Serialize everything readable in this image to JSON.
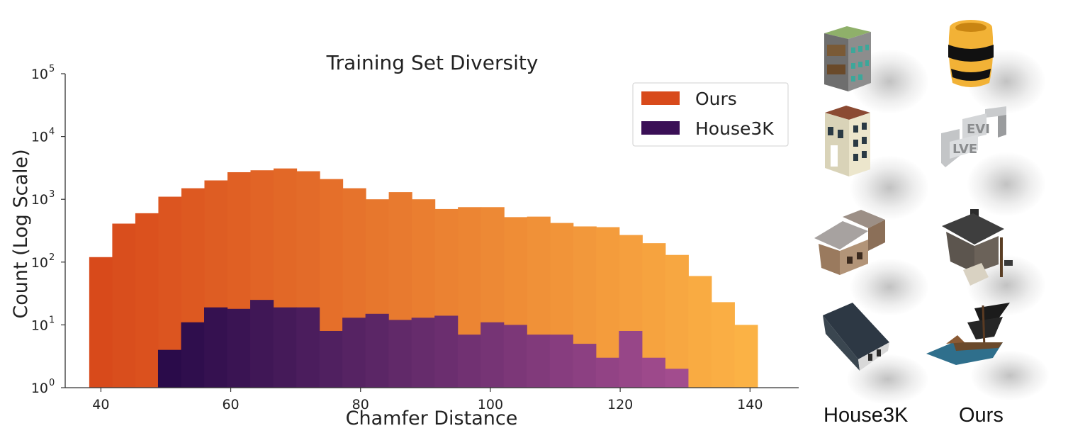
{
  "chart_data": {
    "type": "bar",
    "title": "Training Set Diversity",
    "xlabel": "Chamfer Distance",
    "ylabel": "Count (Log Scale)",
    "xlim": [
      34.5,
      147.5
    ],
    "ylim": [
      1,
      100000
    ],
    "yscale": "log",
    "xticks": [
      "40",
      "60",
      "80",
      "100",
      "120",
      "140"
    ],
    "xtick_values": [
      40,
      60,
      80,
      100,
      120,
      140
    ],
    "yticks": [
      "10",
      "10",
      "10",
      "10",
      "10",
      "10"
    ],
    "ytick_exponents": [
      "0",
      "1",
      "2",
      "3",
      "4",
      "5"
    ],
    "ytick_values": [
      1,
      10,
      100,
      1000,
      10000,
      100000
    ],
    "legend": [
      "Ours",
      "House3K"
    ],
    "legend_position": "top-right",
    "series": [
      {
        "name": "Ours",
        "color_start": "#d84a1b",
        "color_end": "#fbb245",
        "bin_start": 38.2,
        "bin_width": 3.55,
        "values": [
          120,
          410,
          600,
          1100,
          1500,
          2000,
          2700,
          2900,
          3100,
          2800,
          2100,
          1500,
          1000,
          1300,
          1000,
          700,
          750,
          750,
          520,
          530,
          420,
          370,
          360,
          270,
          200,
          130,
          60,
          23,
          10
        ]
      },
      {
        "name": "House3K",
        "color_start": "#2a0b4a",
        "color_end": "#a24c8e",
        "bin_start": 48.8,
        "bin_width": 3.55,
        "values": [
          4,
          11,
          19,
          18,
          25,
          19,
          19,
          8,
          13,
          15,
          12,
          13,
          14,
          7,
          11,
          10,
          7,
          7,
          5,
          3,
          8,
          3,
          2
        ]
      }
    ]
  },
  "gallery": {
    "captions": [
      "House3K",
      "Ours"
    ],
    "thumbnails": [
      "house-building-green-roof",
      "barrel",
      "house-building-cream",
      "letters-sculpture",
      "wooden-shack",
      "stone-house-porch",
      "dark-roof-house",
      "pirate-ship"
    ]
  }
}
